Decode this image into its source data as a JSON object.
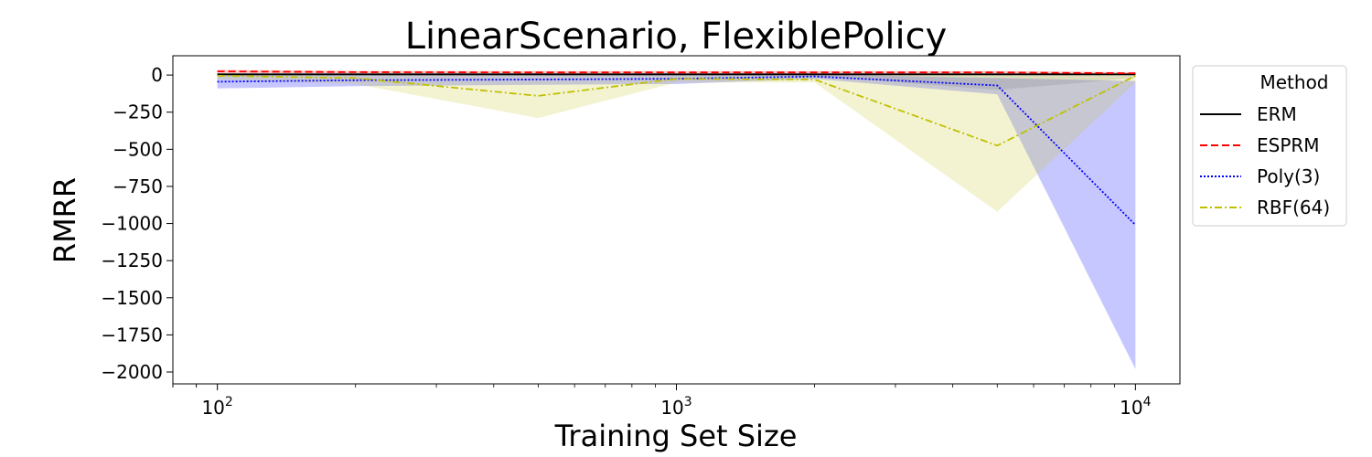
{
  "chart_data": {
    "type": "line",
    "title": "LinearScenario, FlexiblePolicy",
    "xlabel": "Training Set Size",
    "ylabel": "RMRR",
    "x_scale": "log",
    "xlim": [
      80,
      12500
    ],
    "ylim": [
      -2080,
      130
    ],
    "x_ticks": [
      100,
      1000,
      10000
    ],
    "x_tick_labels": [
      {
        "base": "10",
        "exp": "2"
      },
      {
        "base": "10",
        "exp": "3"
      },
      {
        "base": "10",
        "exp": "4"
      }
    ],
    "y_ticks": [
      0,
      -250,
      -500,
      -750,
      -1000,
      -1250,
      -1500,
      -1750,
      -2000
    ],
    "y_tick_labels": [
      "0",
      "−250",
      "−500",
      "−750",
      "−1000",
      "−1250",
      "−1500",
      "−1750",
      "−2000"
    ],
    "grid": false,
    "legend": {
      "title": "Method",
      "placement": "outside-top-right"
    },
    "x": [
      100,
      200,
      500,
      1000,
      2000,
      5000,
      10000
    ],
    "series": [
      {
        "name": "ERM",
        "color": "#000000",
        "dash": "solid",
        "band_color": "#808080",
        "values": [
          5,
          5,
          5,
          5,
          5,
          5,
          5
        ],
        "lower": [
          -5,
          -5,
          -5,
          -5,
          -5,
          -100,
          -20
        ],
        "upper": [
          15,
          15,
          15,
          15,
          15,
          15,
          15
        ]
      },
      {
        "name": "ESPRM",
        "color": "#ff0000",
        "dash": "dashed",
        "band_color": "#ff0000",
        "values": [
          25,
          20,
          18,
          18,
          18,
          18,
          12
        ],
        "lower": [
          15,
          12,
          10,
          10,
          10,
          10,
          5
        ],
        "upper": [
          35,
          28,
          26,
          26,
          26,
          26,
          20
        ]
      },
      {
        "name": "Poly(3)",
        "color": "#0000ff",
        "dash": "dotted",
        "band_color": "#0000ff",
        "values": [
          -45,
          -35,
          -30,
          -25,
          -10,
          -70,
          -1010
        ],
        "lower": [
          -90,
          -75,
          -65,
          -60,
          -25,
          -130,
          -1980
        ],
        "upper": [
          0,
          5,
          5,
          10,
          5,
          -20,
          -40
        ]
      },
      {
        "name": "RBF(64)",
        "color": "#c0c000",
        "dash": "dashdot",
        "band_color": "#c8c832",
        "values": [
          -5,
          -20,
          -140,
          -25,
          -30,
          -475,
          -5
        ],
        "lower": [
          -30,
          -60,
          -290,
          -50,
          -50,
          -920,
          -50
        ],
        "upper": [
          10,
          10,
          10,
          10,
          10,
          10,
          10
        ]
      }
    ]
  }
}
